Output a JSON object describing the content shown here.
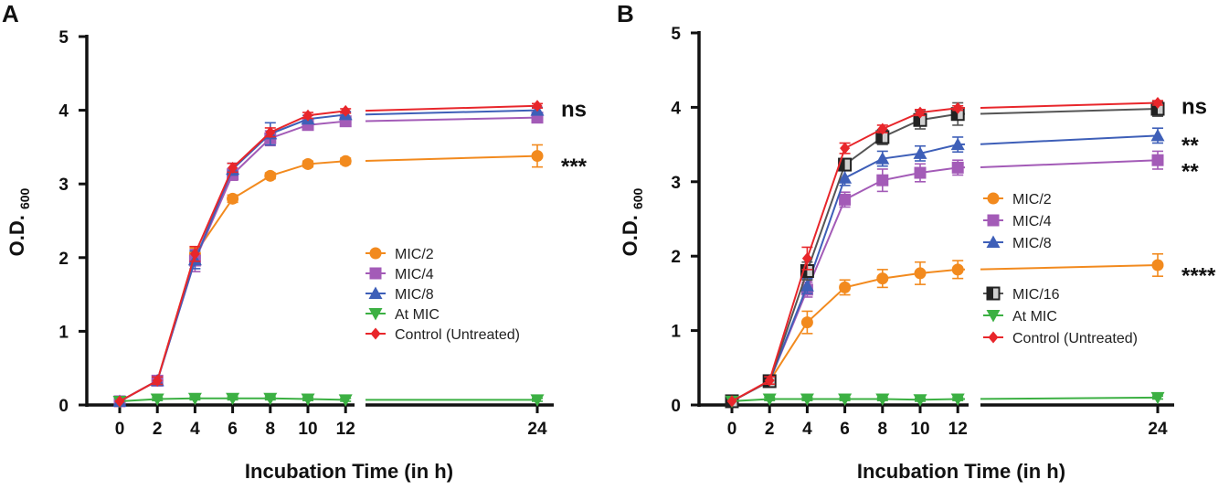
{
  "chart_data": [
    {
      "panel": "A",
      "type": "line",
      "xlabel": "Incubation Time (in h)",
      "ylabel": "O.D.",
      "ylabel_sub": "600",
      "ylim": [
        0,
        5
      ],
      "yticks": [
        "0",
        "1",
        "2",
        "3",
        "4",
        "5"
      ],
      "x": [
        0,
        2,
        4,
        6,
        8,
        10,
        12,
        24
      ],
      "xticks": [
        "0",
        "2",
        "4",
        "6",
        "8",
        "10",
        "12",
        "24"
      ],
      "series": [
        {
          "name": "MIC/2",
          "color": "#f28a1e",
          "marker": "circle",
          "values": [
            0.05,
            0.33,
            2.05,
            2.8,
            3.11,
            3.27,
            3.31,
            3.38
          ],
          "errors": [
            0,
            0.05,
            0.08,
            0.05,
            0.04,
            0.04,
            0.04,
            0.15
          ]
        },
        {
          "name": "MIC/4",
          "color": "#a35bb7",
          "marker": "square",
          "values": [
            0.05,
            0.33,
            1.96,
            3.13,
            3.62,
            3.8,
            3.85,
            3.9
          ],
          "errors": [
            0,
            0.05,
            0.15,
            0.08,
            0.1,
            0.05,
            0.04,
            0.05
          ]
        },
        {
          "name": "MIC/8",
          "color": "#3e5fb8",
          "marker": "triangle-up",
          "values": [
            0.05,
            0.33,
            1.97,
            3.2,
            3.68,
            3.88,
            3.94,
            4.0
          ],
          "errors": [
            0,
            0.05,
            0.12,
            0.08,
            0.15,
            0.05,
            0.04,
            0.04
          ]
        },
        {
          "name": "At MIC",
          "color": "#3cb043",
          "marker": "triangle-down",
          "values": [
            0.05,
            0.08,
            0.09,
            0.09,
            0.09,
            0.08,
            0.07,
            0.07
          ],
          "errors": [
            0,
            0.02,
            0.02,
            0.02,
            0.02,
            0.02,
            0.02,
            0.02
          ]
        },
        {
          "name": "Control (Untreated)",
          "color": "#e8262b",
          "marker": "diamond",
          "values": [
            0.05,
            0.33,
            2.05,
            3.22,
            3.7,
            3.93,
            3.99,
            4.06
          ],
          "errors": [
            0,
            0.05,
            0.1,
            0.06,
            0.06,
            0.04,
            0.03,
            0.03
          ]
        }
      ],
      "legend_groups": [
        [
          0,
          1,
          2,
          3,
          4
        ]
      ],
      "significance": [
        {
          "label": "ns",
          "value": 4.0
        },
        {
          "label": "***",
          "value": 3.3
        }
      ]
    },
    {
      "panel": "B",
      "type": "line",
      "xlabel": "Incubation Time (in h)",
      "ylabel": "O.D.",
      "ylabel_sub": "600",
      "ylim": [
        0,
        5
      ],
      "yticks": [
        "0",
        "1",
        "2",
        "3",
        "4",
        "5"
      ],
      "x": [
        0,
        2,
        4,
        6,
        8,
        10,
        12,
        24
      ],
      "xticks": [
        "0",
        "2",
        "4",
        "6",
        "8",
        "10",
        "12",
        "24"
      ],
      "series": [
        {
          "name": "MIC/2",
          "color": "#f28a1e",
          "marker": "circle",
          "values": [
            0.05,
            0.32,
            1.11,
            1.58,
            1.7,
            1.77,
            1.82,
            1.88
          ],
          "errors": [
            0,
            0.05,
            0.15,
            0.1,
            0.12,
            0.15,
            0.12,
            0.15
          ]
        },
        {
          "name": "MIC/4",
          "color": "#a35bb7",
          "marker": "square",
          "values": [
            0.05,
            0.32,
            1.55,
            2.76,
            3.02,
            3.12,
            3.19,
            3.29
          ],
          "errors": [
            0,
            0.05,
            0.1,
            0.1,
            0.15,
            0.12,
            0.1,
            0.12
          ]
        },
        {
          "name": "MIC/8",
          "color": "#3e5fb8",
          "marker": "triangle-up",
          "values": [
            0.05,
            0.32,
            1.6,
            3.05,
            3.31,
            3.38,
            3.5,
            3.62
          ],
          "errors": [
            0,
            0.05,
            0.1,
            0.1,
            0.1,
            0.1,
            0.1,
            0.1
          ]
        },
        {
          "name": "MIC/16",
          "color": "#555555",
          "marker": "half-square",
          "values": [
            0.05,
            0.32,
            1.8,
            3.23,
            3.6,
            3.83,
            3.91,
            3.98
          ],
          "errors": [
            0,
            0.05,
            0.12,
            0.08,
            0.1,
            0.12,
            0.15,
            0.1
          ]
        },
        {
          "name": "At MIC",
          "color": "#3cb043",
          "marker": "triangle-down",
          "values": [
            0.05,
            0.08,
            0.08,
            0.08,
            0.08,
            0.07,
            0.08,
            0.1
          ],
          "errors": [
            0,
            0.02,
            0.02,
            0.02,
            0.02,
            0.02,
            0.02,
            0.02
          ]
        },
        {
          "name": "Control (Untreated)",
          "color": "#e8262b",
          "marker": "diamond",
          "values": [
            0.05,
            0.33,
            1.97,
            3.45,
            3.71,
            3.93,
            3.99,
            4.06
          ],
          "errors": [
            0,
            0.05,
            0.15,
            0.07,
            0.05,
            0.04,
            0.03,
            0.03
          ]
        }
      ],
      "legend_groups": [
        [
          0,
          1,
          2
        ],
        [
          3,
          4,
          5
        ]
      ],
      "significance": [
        {
          "label": "ns",
          "value": 4.0
        },
        {
          "label": "**",
          "value": 3.55
        },
        {
          "label": "**",
          "value": 3.2
        },
        {
          "label": "****",
          "value": 1.8
        }
      ]
    }
  ]
}
